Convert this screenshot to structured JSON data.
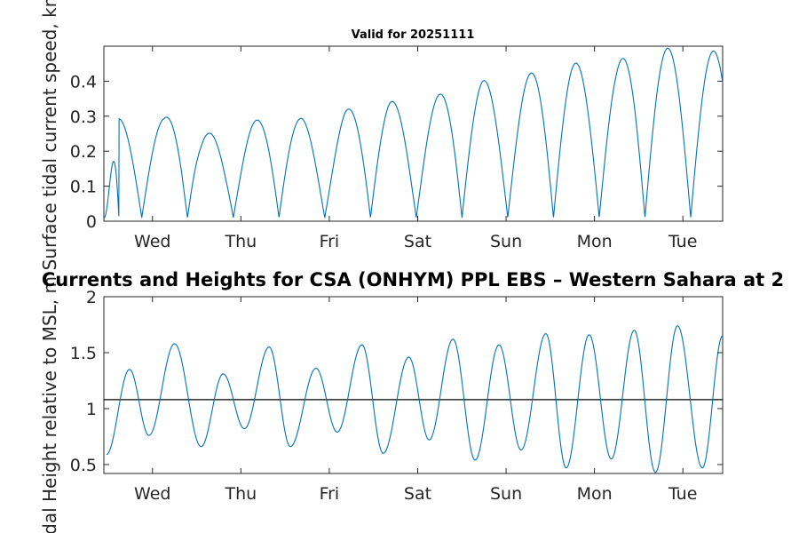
{
  "main_title": "Currents and Heights for CSA (ONHYM) PPL EBS  – Western Sahara at 2",
  "chart_data": [
    {
      "type": "line",
      "title": "Valid for 20251111",
      "ylabel": "Surface tidal current speed, kn",
      "xlabel": "",
      "xlim": [
        0,
        7
      ],
      "ylim": [
        0,
        0.5
      ],
      "yticks": [
        0,
        0.1,
        0.2,
        0.3,
        0.4
      ],
      "ytick_labels": [
        "0",
        "0.1",
        "0.2",
        "0.3",
        "0.4"
      ],
      "xticks": [
        0.55,
        1.55,
        2.55,
        3.55,
        4.55,
        5.55,
        6.55
      ],
      "xtick_labels": [
        "Wed",
        "Thu",
        "Fri",
        "Sat",
        "Sun",
        "Mon",
        "Tue"
      ],
      "series": [
        {
          "name": "current speed",
          "color": "#0072BD",
          "x": [
            0.0,
            0.17,
            0.38,
            0.68,
            0.88,
            1.1,
            1.38,
            1.66,
            1.97,
            2.25,
            2.5,
            2.73,
            2.98,
            3.23,
            3.5,
            3.8,
            4.0,
            4.28,
            4.52,
            4.76,
            5.02,
            5.28,
            5.5,
            5.79,
            6.03,
            6.27,
            6.5,
            6.7,
            6.95
          ],
          "y": [
            0.0,
            0.293,
            0.28,
            0.293,
            0.338,
            0.262,
            0.232,
            0.28,
            0.32,
            0.292,
            0.248,
            0.315,
            0.353,
            0.348,
            0.305,
            0.363,
            0.403,
            0.405,
            0.373,
            0.412,
            0.453,
            0.456,
            0.44,
            0.452,
            0.492,
            0.495,
            0.493,
            0.49,
            0.485
          ]
        }
      ]
    },
    {
      "type": "line",
      "title": "",
      "ylabel": "Tidal Height relative to MSL, m",
      "xlabel": "",
      "xlim": [
        0,
        7
      ],
      "ylim": [
        0.42,
        2.0
      ],
      "yticks": [
        0.5,
        1,
        1.5,
        2
      ],
      "ytick_labels": [
        "0.5",
        "1",
        "1.5",
        "2"
      ],
      "xticks": [
        0.55,
        1.55,
        2.55,
        3.55,
        4.55,
        5.55,
        6.55
      ],
      "xtick_labels": [
        "Wed",
        "Thu",
        "Fri",
        "Sat",
        "Sun",
        "Mon",
        "Tue"
      ],
      "reference_line": 1.08,
      "series": [
        {
          "name": "tidal height",
          "color": "#0072BD",
          "extrema_x": [
            0.03,
            0.29,
            0.51,
            0.8,
            1.1,
            1.35,
            1.59,
            1.87,
            2.11,
            2.4,
            2.64,
            2.92,
            3.16,
            3.45,
            3.68,
            3.95,
            4.2,
            4.47,
            4.72,
            5.0,
            5.23,
            5.49,
            5.74,
            6.0,
            6.24,
            6.49,
            6.77,
            7.0
          ],
          "extrema_y": [
            0.59,
            1.35,
            0.76,
            1.58,
            0.66,
            1.31,
            0.82,
            1.55,
            0.66,
            1.36,
            0.79,
            1.57,
            0.6,
            1.46,
            0.72,
            1.62,
            0.54,
            1.57,
            0.63,
            1.67,
            0.47,
            1.66,
            0.55,
            1.7,
            0.43,
            1.74,
            0.47,
            1.65
          ]
        }
      ]
    }
  ]
}
